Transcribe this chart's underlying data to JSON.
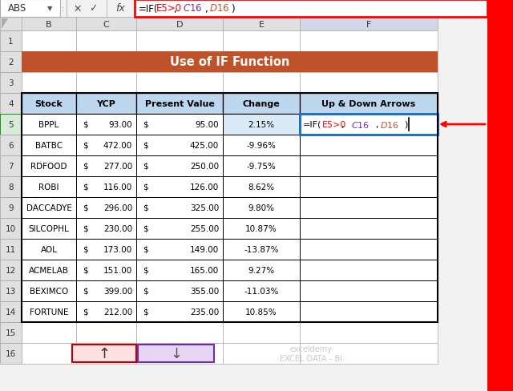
{
  "title": "Use of IF Function",
  "title_bg": "#C0522A",
  "title_color": "#FFFFFF",
  "formula_text_parts": [
    {
      "text": "=IF(E5>0, $C$16,$D$16)",
      "color": "#000000"
    }
  ],
  "formula_colored_parts": [
    {
      "text": "=IF(",
      "color": "#000000"
    },
    {
      "text": "E5>0",
      "color": "#FF0000"
    },
    {
      "text": ", ",
      "color": "#000000"
    },
    {
      "text": "$C$16",
      "color": "#7030A0"
    },
    {
      "text": ",",
      "color": "#000000"
    },
    {
      "text": "$D$16",
      "color": "#C0522A"
    },
    {
      "text": ")",
      "color": "#000000"
    }
  ],
  "headers": [
    "Stock",
    "YCP",
    "Present Value",
    "Change",
    "Up & Down Arrows"
  ],
  "header_bg": "#BDD7EE",
  "header_border": "#000000",
  "rows": [
    [
      "BPPL",
      "93.00",
      "95.00",
      "2.15%"
    ],
    [
      "BATBC",
      "472.00",
      "425.00",
      "-9.96%"
    ],
    [
      "RDFOOD",
      "277.00",
      "250.00",
      "-9.75%"
    ],
    [
      "ROBI",
      "116.00",
      "126.00",
      "8.62%"
    ],
    [
      "DACCADYE",
      "296.00",
      "325.00",
      "9.80%"
    ],
    [
      "SILCOPHL",
      "230.00",
      "255.00",
      "10.87%"
    ],
    [
      "AOL",
      "173.00",
      "149.00",
      "-13.87%"
    ],
    [
      "ACMELAB",
      "151.00",
      "165.00",
      "9.27%"
    ],
    [
      "BEXIMCO",
      "399.00",
      "355.00",
      "-11.03%"
    ],
    [
      "FORTUNE",
      "212.00",
      "235.00",
      "10.85%"
    ]
  ],
  "cell_f5_parts": [
    {
      "text": "=IF(",
      "color": "#000000"
    },
    {
      "text": "E5>0",
      "color": "#FF0000"
    },
    {
      "text": ", ",
      "color": "#000000"
    },
    {
      "text": "$C$16",
      "color": "#7030A0"
    },
    {
      "text": ",",
      "color": "#000000"
    },
    {
      "text": "$D$16",
      "color": "#C0522A"
    },
    {
      "text": ")",
      "color": "#000000"
    }
  ],
  "arrow_up_box_color": "#FFE0E0",
  "arrow_up_box_border": "#C00000",
  "arrow_down_box_color": "#E8D5F5",
  "arrow_down_box_border": "#7030A0",
  "fig_bg": "#F2F2F2",
  "cell_border": "#000000",
  "cell_bg": "#FFFFFF",
  "row_header_bg": "#E0E0E0",
  "col_header_bg": "#E0E0E0",
  "col_header_selected_bg": "#D0D8E8",
  "row5_highlight_bg": "#E8F0FA",
  "formula_border": "#FF0000",
  "cell_f5_border": "#2472C8",
  "red_line_color": "#FF0000",
  "watermark_text": "exceldemy\nEXCEL DATA - BI",
  "watermark_color": "#C0C0C0"
}
